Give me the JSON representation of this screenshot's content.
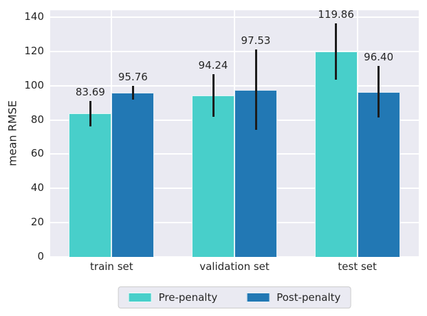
{
  "chart_data": {
    "type": "bar",
    "title": "",
    "xlabel": "",
    "ylabel": "mean RMSE",
    "categories": [
      "train set",
      "validation set",
      "test set"
    ],
    "series": [
      {
        "name": "Pre-penalty",
        "color": "#48cfca",
        "values": [
          83.69,
          94.24,
          119.86
        ],
        "errors": [
          7.5,
          12.3,
          16.5
        ]
      },
      {
        "name": "Post-penalty",
        "color": "#2278b4",
        "values": [
          95.76,
          97.53,
          96.4
        ],
        "errors": [
          4.0,
          23.5,
          15.0
        ]
      }
    ],
    "value_labels": [
      "83.69",
      "95.76",
      "94.24",
      "97.53",
      "119.86",
      "96.40"
    ],
    "ylim": [
      0,
      144
    ],
    "yticks": [
      0,
      20,
      40,
      60,
      80,
      100,
      120,
      140
    ],
    "grid": true,
    "legend_position": "lower center outside",
    "colors": {
      "plot_background": "#eaeaf2",
      "grid": "#ffffff",
      "text": "#262626",
      "error_bar": "#1c1c1c",
      "legend_background": "#eaeaf2",
      "legend_border": "#cccccc"
    }
  }
}
